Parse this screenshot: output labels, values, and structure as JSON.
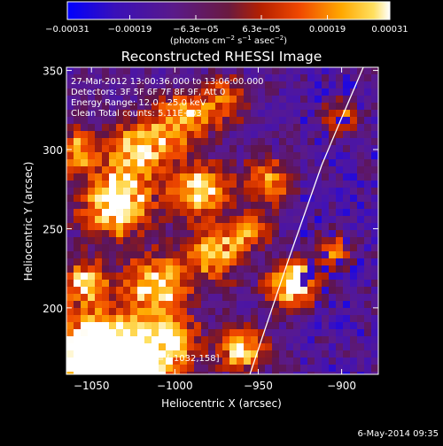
{
  "chart_data": {
    "type": "heatmap",
    "title": "Reconstructed RHESSI Image",
    "xlabel": "Heliocentric X (arcsec)",
    "ylabel": "Heliocentric Y (arcsec)",
    "xlim": [
      -1065,
      -878
    ],
    "ylim": [
      158,
      352
    ],
    "x_ticks": [
      -1050,
      -1000,
      -950,
      -900
    ],
    "x_tick_labels": [
      "−1050",
      "−1000",
      "−950",
      "−900"
    ],
    "y_ticks": [
      200,
      250,
      300,
      350
    ],
    "y_tick_labels": [
      "200",
      "250",
      "300",
      "350"
    ],
    "colorbar": {
      "min": -0.00031,
      "max": 0.00031,
      "tick_values": [
        -0.00031,
        -0.00019,
        -6.3e-05,
        6.3e-05,
        0.00019,
        0.00031
      ],
      "tick_labels": [
        "−0.00031",
        "−0.00019",
        "−6.3e−05",
        "6.3e−05",
        "0.00019",
        "0.00031"
      ],
      "units_prefix": "(photons cm",
      "units_exp1": "−2",
      "units_mid": " s",
      "units_exp2": "−1",
      "units_mid2": " asec",
      "units_exp3": "−2",
      "units_suffix": ")",
      "colors": [
        "#0000ff",
        "#4a0a9a",
        "#5a1a8a",
        "#8a2a00",
        "#e04000",
        "#ffa000",
        "#ffffff"
      ]
    },
    "annotations": [
      "27-Mar-2012 13:00:36.000 to 13:06:00.000",
      "Detectors: 3F 5F 6F 7F 8F 9F, Att 0",
      "Energy Range: 12.0 - 25.0 keV",
      "Clean    Total counts: 5.11E+03"
    ],
    "peak_label": "Position of Peak = [-1032,158]",
    "peak": {
      "x": -1032,
      "y": 158
    },
    "limb": [
      [
        -955,
        158
      ],
      [
        -948,
        180
      ],
      [
        -940,
        205
      ],
      [
        -932,
        230
      ],
      [
        -922,
        260
      ],
      [
        -912,
        290
      ],
      [
        -900,
        320
      ],
      [
        -887,
        352
      ]
    ],
    "grid": false,
    "legend": "none"
  },
  "footer": {
    "date_stamp": "6-May-2014 09:35"
  }
}
